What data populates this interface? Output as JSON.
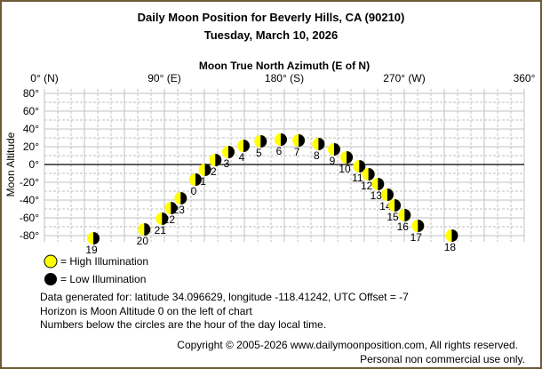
{
  "title": "Daily Moon Position for Beverly Hills, CA (90210)",
  "subtitle": "Tuesday, March 10, 2026",
  "chart_data": {
    "type": "scatter",
    "xlabel": "Moon True North Azimuth (E of N)",
    "ylabel": "Moon Altitude",
    "xlim": [
      0,
      360
    ],
    "ylim": [
      -90,
      90
    ],
    "grid": true,
    "x_ticks": [
      {
        "v": 0,
        "label": "0° (N)"
      },
      {
        "v": 90,
        "label": "90° (E)"
      },
      {
        "v": 180,
        "label": "180° (S)"
      },
      {
        "v": 270,
        "label": "270° (W)"
      },
      {
        "v": 360,
        "label": "360°"
      }
    ],
    "y_ticks": [
      {
        "v": 80,
        "label": "80°"
      },
      {
        "v": 60,
        "label": "60°"
      },
      {
        "v": 40,
        "label": "40°"
      },
      {
        "v": 20,
        "label": "20°"
      },
      {
        "v": 0,
        "label": "0°"
      },
      {
        "v": -20,
        "label": "-20°"
      },
      {
        "v": -40,
        "label": "-40°"
      },
      {
        "v": -60,
        "label": "-60°"
      },
      {
        "v": -80,
        "label": "-80°"
      }
    ],
    "points": [
      {
        "hour": "19",
        "az": 36.7,
        "alt": -83
      },
      {
        "hour": "20",
        "az": 74.9,
        "alt": -73
      },
      {
        "hour": "21",
        "az": 88.2,
        "alt": -61
      },
      {
        "hour": "22",
        "az": 94.9,
        "alt": -49
      },
      {
        "hour": "23",
        "az": 102.2,
        "alt": -38
      },
      {
        "hour": "0",
        "az": 113.3,
        "alt": -17
      },
      {
        "hour": "1",
        "az": 120.4,
        "alt": -6
      },
      {
        "hour": "2",
        "az": 128.2,
        "alt": 5
      },
      {
        "hour": "3",
        "az": 138.0,
        "alt": 14
      },
      {
        "hour": "4",
        "az": 149.3,
        "alt": 21
      },
      {
        "hour": "5",
        "az": 162.2,
        "alt": 26
      },
      {
        "hour": "6",
        "az": 177.3,
        "alt": 28
      },
      {
        "hour": "7",
        "az": 190.7,
        "alt": 27
      },
      {
        "hour": "8",
        "az": 205.6,
        "alt": 23
      },
      {
        "hour": "9",
        "az": 217.3,
        "alt": 17
      },
      {
        "hour": "10",
        "az": 226.7,
        "alt": 8
      },
      {
        "hour": "11",
        "az": 236.2,
        "alt": -2
      },
      {
        "hour": "12",
        "az": 243.1,
        "alt": -11
      },
      {
        "hour": "13",
        "az": 250.2,
        "alt": -22
      },
      {
        "hour": "14",
        "az": 257.3,
        "alt": -34
      },
      {
        "hour": "15",
        "az": 262.7,
        "alt": -46
      },
      {
        "hour": "16",
        "az": 270.2,
        "alt": -57
      },
      {
        "hour": "17",
        "az": 280.2,
        "alt": -69
      },
      {
        "hour": "18",
        "az": 305.6,
        "alt": -80
      }
    ],
    "colors": {
      "high": "#ffff00",
      "low": "#000000",
      "grid": "#c0c0c0",
      "horizon": "#000000"
    }
  },
  "legend": {
    "high": "= High Illumination",
    "low": "= Low Illumination"
  },
  "notes": [
    "Data generated for: latitude 34.096629, longitude -118.41242, UTC Offset = -7",
    "Horizon is Moon Altitude 0 on the left of chart",
    "Numbers below the circles are the hour of the day local time."
  ],
  "copyright": "Copyright © 2005-2026 www.dailymoonposition.com, All rights reserved.",
  "usage": "Personal non commercial use only."
}
